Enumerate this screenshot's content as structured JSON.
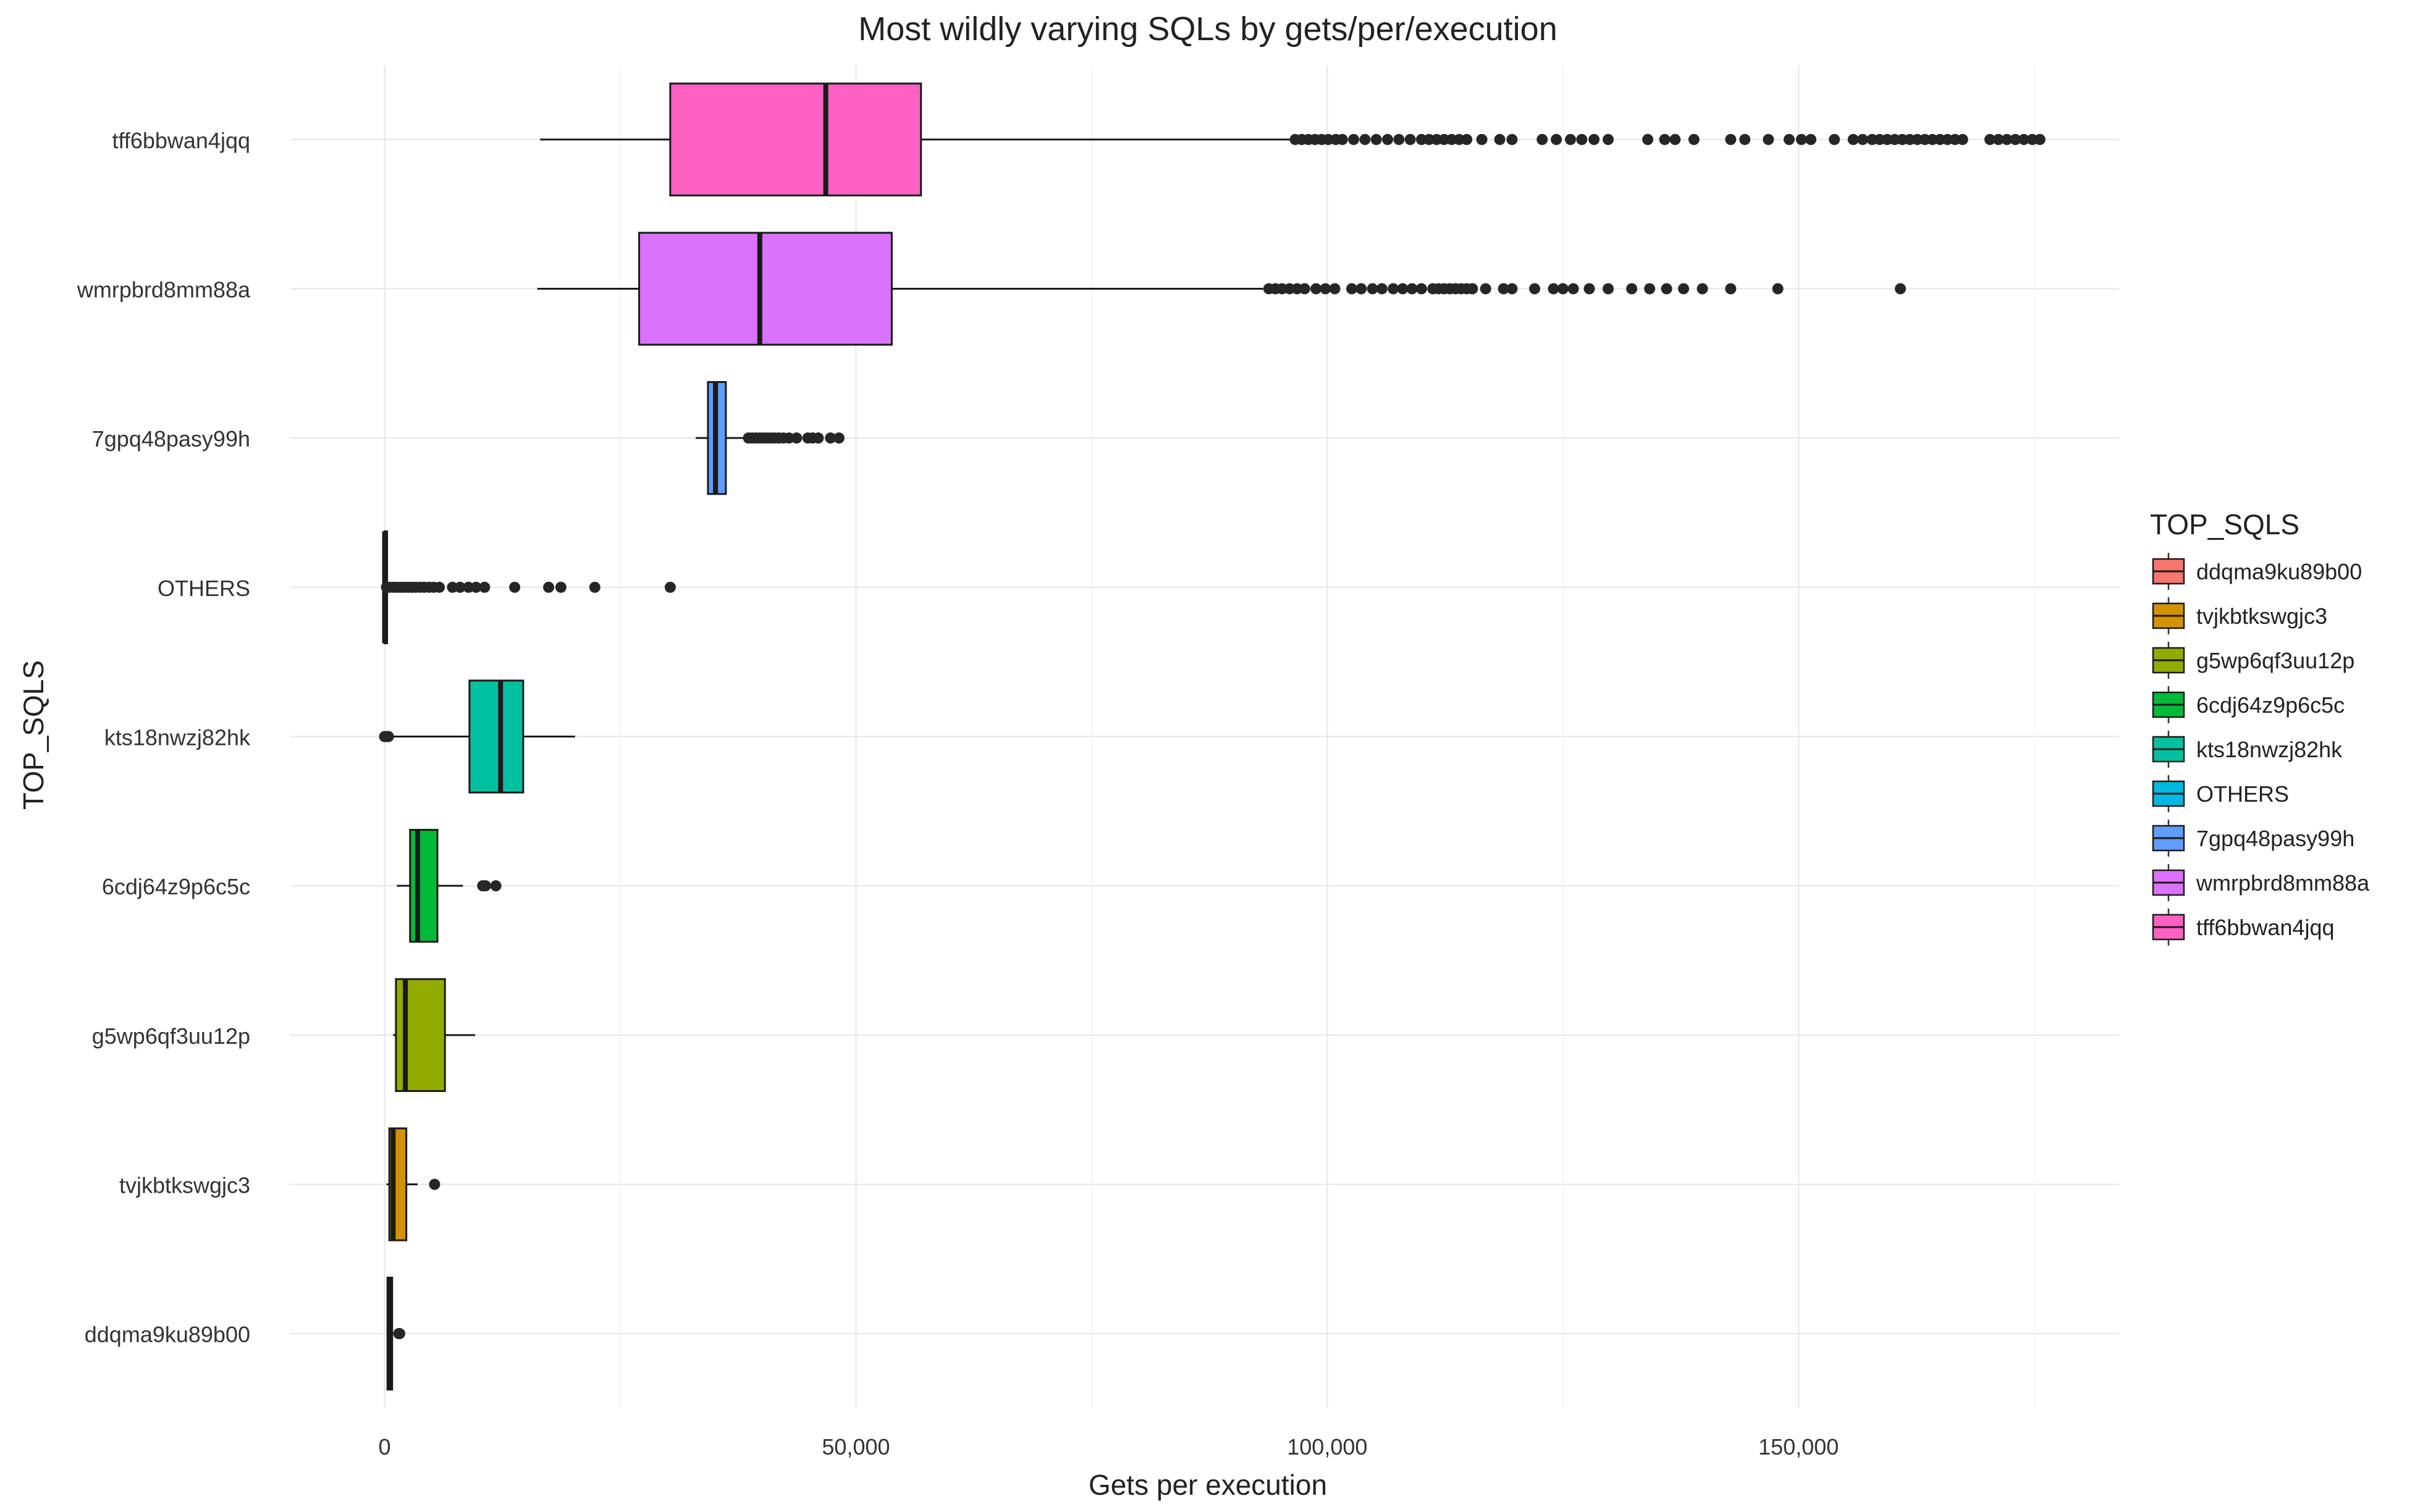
{
  "chart_data": {
    "type": "boxplot",
    "orientation": "horizontal",
    "title": "Most wildly varying SQLs by gets/per/execution",
    "xlabel": "Gets per execution",
    "ylabel": "TOP_SQLS",
    "xlim": [
      -10000,
      184000
    ],
    "x_ticks": [
      0,
      50000,
      100000,
      150000
    ],
    "x_tick_labels": [
      "0",
      "50,000",
      "100,000",
      "150,000"
    ],
    "grid": true,
    "legend": {
      "title": "TOP_SQLS",
      "position": "right",
      "entries": [
        "ddqma9ku89b00",
        "tvjkbtkswgjc3",
        "g5wp6qf3uu12p",
        "6cdj64z9p6c5c",
        "kts18nwzj82hk",
        "OTHERS",
        "7gpq48pasy99h",
        "wmrpbrd8mm88a",
        "tff6bbwan4jqq"
      ]
    },
    "series": [
      {
        "category": "ddqma9ku89b00",
        "color": "#F8766D",
        "min": 300,
        "q1": 300,
        "median": 500,
        "q3": 800,
        "max": 900,
        "outliers": [
          1500,
          1600
        ]
      },
      {
        "category": "tvjkbtkswgjc3",
        "color": "#D39200",
        "min": 200,
        "q1": 500,
        "median": 900,
        "q3": 2300,
        "max": 3500,
        "outliers": [
          5300
        ]
      },
      {
        "category": "g5wp6qf3uu12p",
        "color": "#93AA00",
        "min": 900,
        "q1": 1200,
        "median": 2200,
        "q3": 6400,
        "max": 9600,
        "outliers": []
      },
      {
        "category": "6cdj64z9p6c5c",
        "color": "#00BA38",
        "min": 1300,
        "q1": 2700,
        "median": 3500,
        "q3": 5600,
        "max": 8300,
        "outliers": [
          10400,
          10700,
          11800
        ]
      },
      {
        "category": "kts18nwzj82hk",
        "color": "#00C19F",
        "min": 700,
        "q1": 9000,
        "median": 12300,
        "q3": 14700,
        "max": 20200,
        "outliers": [
          0,
          200,
          400
        ]
      },
      {
        "category": "OTHERS",
        "color": "#00B9E3",
        "min": 0,
        "q1": 0,
        "median": 0,
        "q3": 0,
        "max": 100,
        "outliers": [
          200,
          500,
          900,
          1300,
          1700,
          2100,
          2500,
          2900,
          3300,
          3800,
          4200,
          4700,
          5200,
          5800,
          7200,
          8000,
          8900,
          9700,
          10600,
          13800,
          17400,
          18700,
          22300,
          30300
        ]
      },
      {
        "category": "7gpq48pasy99h",
        "color": "#619CFF",
        "min": 33000,
        "q1": 34300,
        "median": 35100,
        "q3": 36200,
        "max": 38200,
        "outliers": [
          38600,
          39000,
          39400,
          39800,
          40200,
          40600,
          41000,
          41400,
          41800,
          42300,
          42900,
          43700,
          44900,
          45400,
          46000,
          47300,
          48200
        ]
      },
      {
        "category": "wmrpbrd8mm88a",
        "color": "#DB72FB",
        "min": 16200,
        "q1": 27000,
        "median": 39800,
        "q3": 53800,
        "max": 93200,
        "outliers": [
          93800,
          94500,
          95200,
          96000,
          96800,
          97600,
          98800,
          99800,
          100800,
          102600,
          103600,
          104800,
          105800,
          107000,
          108000,
          109000,
          110000,
          111200,
          111800,
          112400,
          113000,
          113600,
          114200,
          114800,
          115400,
          116800,
          118700,
          119600,
          122000,
          124000,
          125000,
          126100,
          127800,
          129800,
          132300,
          134200,
          136000,
          137800,
          139800,
          142800,
          147800,
          160800
        ]
      },
      {
        "category": "tff6bbwan4jqq",
        "color": "#FF61C3",
        "min": 16500,
        "q1": 30300,
        "median": 46800,
        "q3": 56900,
        "max": 96300,
        "outliers": [
          96600,
          97300,
          98000,
          98700,
          99400,
          100100,
          100900,
          101600,
          102800,
          104000,
          105200,
          106400,
          107600,
          108800,
          110000,
          110800,
          111600,
          112400,
          113200,
          114000,
          114800,
          116400,
          118300,
          119600,
          122800,
          124300,
          125800,
          127000,
          128300,
          129800,
          134000,
          135800,
          136900,
          138900,
          142800,
          144300,
          146800,
          149000,
          150300,
          151300,
          153800,
          155800,
          156800,
          157800,
          158600,
          159400,
          160200,
          161000,
          161800,
          162600,
          163400,
          164200,
          165000,
          165800,
          166600,
          167400,
          170300,
          171200,
          172100,
          173000,
          173900,
          174800,
          175600
        ]
      }
    ]
  }
}
